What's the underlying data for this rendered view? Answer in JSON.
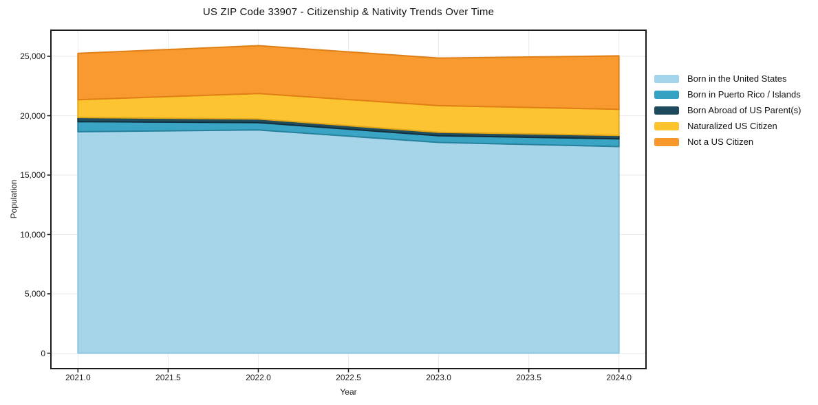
{
  "chart_data": {
    "type": "area",
    "stacked": true,
    "title": "US ZIP Code 33907 - Citizenship & Nativity Trends Over Time",
    "xlabel": "Year",
    "ylabel": "Population",
    "x": [
      2021,
      2022,
      2023,
      2024
    ],
    "series": [
      {
        "name": "Born in the United States",
        "color": "#a4d4e9",
        "edge": "#8cc3de",
        "values": [
          18650,
          18800,
          17750,
          17400
        ]
      },
      {
        "name": "Born in Puerto Rico / Islands",
        "color": "#35a2c3",
        "edge": "#27809c",
        "values": [
          850,
          620,
          560,
          650
        ]
      },
      {
        "name": "Born Abroad of US Parent(s)",
        "color": "#1d4a5c",
        "edge": "#122f3d",
        "values": [
          350,
          300,
          290,
          290
        ]
      },
      {
        "name": "Naturalized US Citizen",
        "color": "#fcc32d",
        "edge": "#e2a718",
        "values": [
          1500,
          2150,
          2250,
          2200
        ]
      },
      {
        "name": "Not a US Citizen",
        "color": "#f8982b",
        "edge": "#df7f16",
        "values": [
          3900,
          4030,
          4000,
          4500
        ]
      }
    ],
    "x_ticks": [
      2021.0,
      2021.5,
      2022.0,
      2022.5,
      2023.0,
      2023.5,
      2024.0
    ],
    "x_tick_labels": [
      "2021.0",
      "2021.5",
      "2022.0",
      "2022.5",
      "2023.0",
      "2023.5",
      "2024.0"
    ],
    "y_ticks": [
      0,
      5000,
      10000,
      15000,
      20000,
      25000
    ],
    "y_tick_labels": [
      "0",
      "5,000",
      "10,000",
      "15,000",
      "20,000",
      "25,000"
    ],
    "xlim": [
      2020.85,
      2024.15
    ],
    "ylim": [
      -1300,
      27200
    ],
    "grid": true,
    "grid_color": "#e8eaee",
    "spine_color": "#1a1a1a",
    "legend_position": "right"
  }
}
